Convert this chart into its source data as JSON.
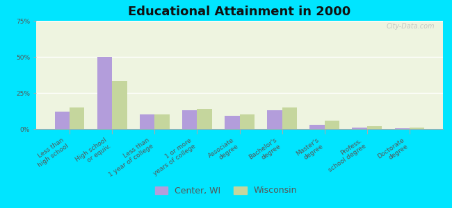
{
  "title": "Educational Attainment in 2000",
  "categories": [
    "Less than\nhigh school",
    "High school\nor equiv.",
    "Less than\n1 year of college",
    "1 or more\nyears of college",
    "Associate\ndegree",
    "Bachelor's\ndegree",
    "Master's\ndegree",
    "Profess.\nschool degree",
    "Doctorate\ndegree"
  ],
  "center_wi": [
    12,
    50,
    10,
    13,
    9,
    13,
    3,
    1,
    0.5
  ],
  "wisconsin": [
    15,
    33,
    10,
    14,
    10,
    15,
    6,
    2,
    1
  ],
  "color_center": "#b39ddb",
  "color_wi": "#c5d69d",
  "background_outer": "#00e5ff",
  "background_plot": "#eef4e0",
  "ylim": [
    0,
    75
  ],
  "yticks": [
    0,
    25,
    50,
    75
  ],
  "yticklabels": [
    "0%",
    "25%",
    "50%",
    "75%"
  ],
  "legend_labels": [
    "Center, WI",
    "Wisconsin"
  ],
  "title_fontsize": 13,
  "tick_fontsize": 6.5,
  "legend_fontsize": 9,
  "bar_width": 0.35
}
